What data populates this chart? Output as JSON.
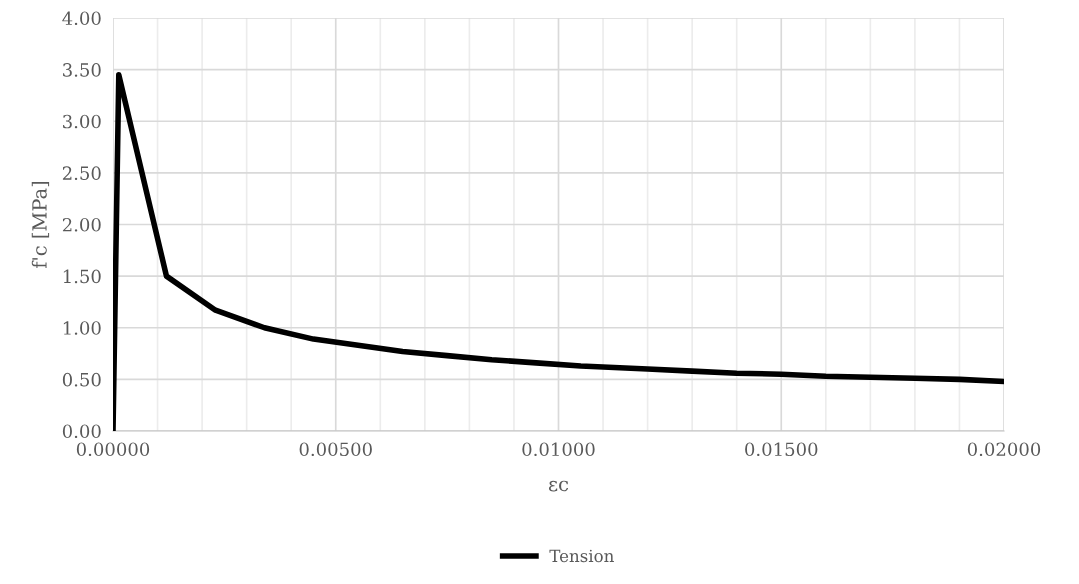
{
  "chart_data": {
    "type": "line",
    "xlabel": "εc",
    "ylabel": "f'c [MPa]",
    "xlim": [
      0,
      0.02
    ],
    "xticks": [
      {
        "value": 0,
        "label": "0.00000"
      },
      {
        "value": 0.005,
        "label": "0.00500"
      },
      {
        "value": 0.01,
        "label": "0.01000"
      },
      {
        "value": 0.015,
        "label": "0.01500"
      },
      {
        "value": 0.02,
        "label": "0.02000"
      }
    ],
    "ylim": [
      0,
      4
    ],
    "yticks": [
      {
        "value": 0,
        "label": "0.00"
      },
      {
        "value": 0.5,
        "label": "0.50"
      },
      {
        "value": 1,
        "label": "1.00"
      },
      {
        "value": 1.5,
        "label": "1.50"
      },
      {
        "value": 2,
        "label": "2.00"
      },
      {
        "value": 2.5,
        "label": "2.50"
      },
      {
        "value": 3,
        "label": "3.00"
      },
      {
        "value": 3.5,
        "label": "3.50"
      },
      {
        "value": 4,
        "label": "4.00"
      }
    ],
    "grid": true,
    "legend": "bottom",
    "marker": "none",
    "line_style": "solid",
    "series": [
      {
        "name": "Tension",
        "color": "#000000",
        "x": [
          0,
          0.00013,
          0.0012,
          0.0023,
          0.0034,
          0.0045,
          0.0055,
          0.0065,
          0.0075,
          0.0085,
          0.0095,
          0.0105,
          0.012,
          0.013,
          0.014,
          0.015,
          0.016,
          0.017,
          0.018,
          0.019,
          0.02
        ],
        "values": [
          0,
          3.45,
          1.5,
          1.17,
          1.0,
          0.89,
          0.83,
          0.77,
          0.73,
          0.69,
          0.66,
          0.63,
          0.6,
          0.58,
          0.56,
          0.55,
          0.53,
          0.52,
          0.51,
          0.5,
          0.48
        ]
      }
    ]
  }
}
